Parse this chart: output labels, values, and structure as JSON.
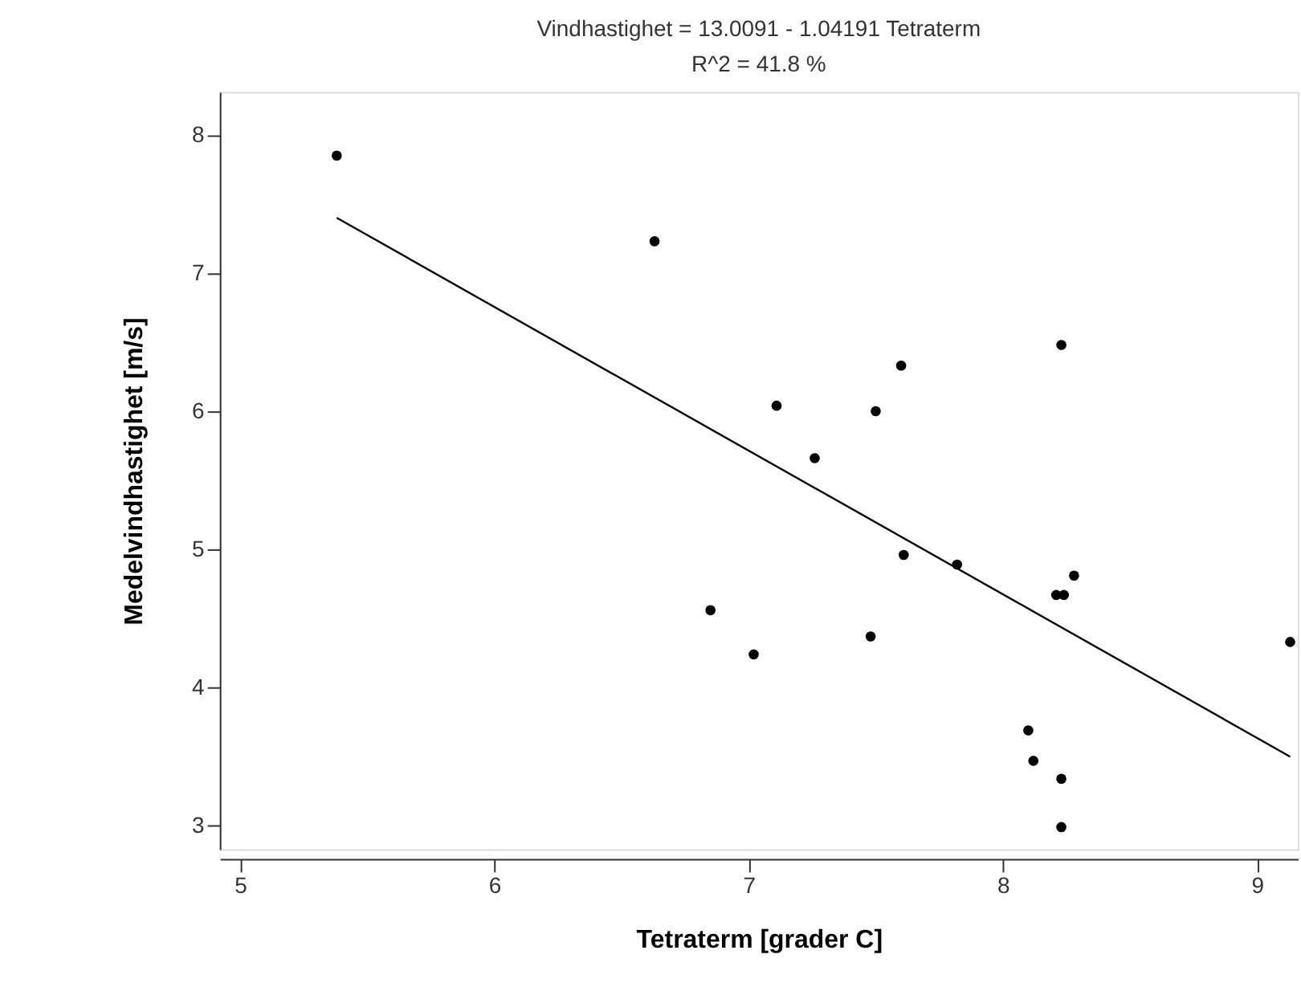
{
  "chart_data": {
    "type": "scatter",
    "title": "Vindhastighet = 13.0091 - 1.04191 Tetraterm",
    "subtitle": "R^2 = 41.8 %",
    "xlabel": "Tetraterm [grader C]",
    "ylabel": "Medelvindhastighet [m/s]",
    "xlim": [
      4.92,
      9.16
    ],
    "ylim": [
      2.83,
      8.31
    ],
    "xticks": [
      5,
      6,
      7,
      8,
      9
    ],
    "yticks": [
      3,
      4,
      5,
      6,
      7,
      8
    ],
    "grid": false,
    "marker": "circle",
    "series": [
      {
        "color": "#000000",
        "x": [
          5.38,
          6.63,
          7.11,
          7.26,
          7.5,
          7.6,
          8.23,
          7.61,
          7.82,
          8.28,
          8.21,
          8.24,
          6.85,
          7.02,
          7.48,
          9.13,
          8.1,
          8.12,
          8.23,
          8.23
        ],
        "values": [
          7.85,
          7.23,
          6.04,
          5.66,
          6.0,
          6.33,
          6.48,
          4.96,
          4.89,
          4.81,
          4.67,
          4.67,
          4.56,
          4.24,
          4.37,
          4.33,
          3.69,
          3.47,
          3.34,
          2.99
        ]
      },
      {
        "type": "line",
        "color": "#000000",
        "marker": "none",
        "line_style": "solid",
        "x": [
          5.38,
          9.13
        ],
        "values": [
          7.4,
          3.5
        ]
      }
    ]
  }
}
